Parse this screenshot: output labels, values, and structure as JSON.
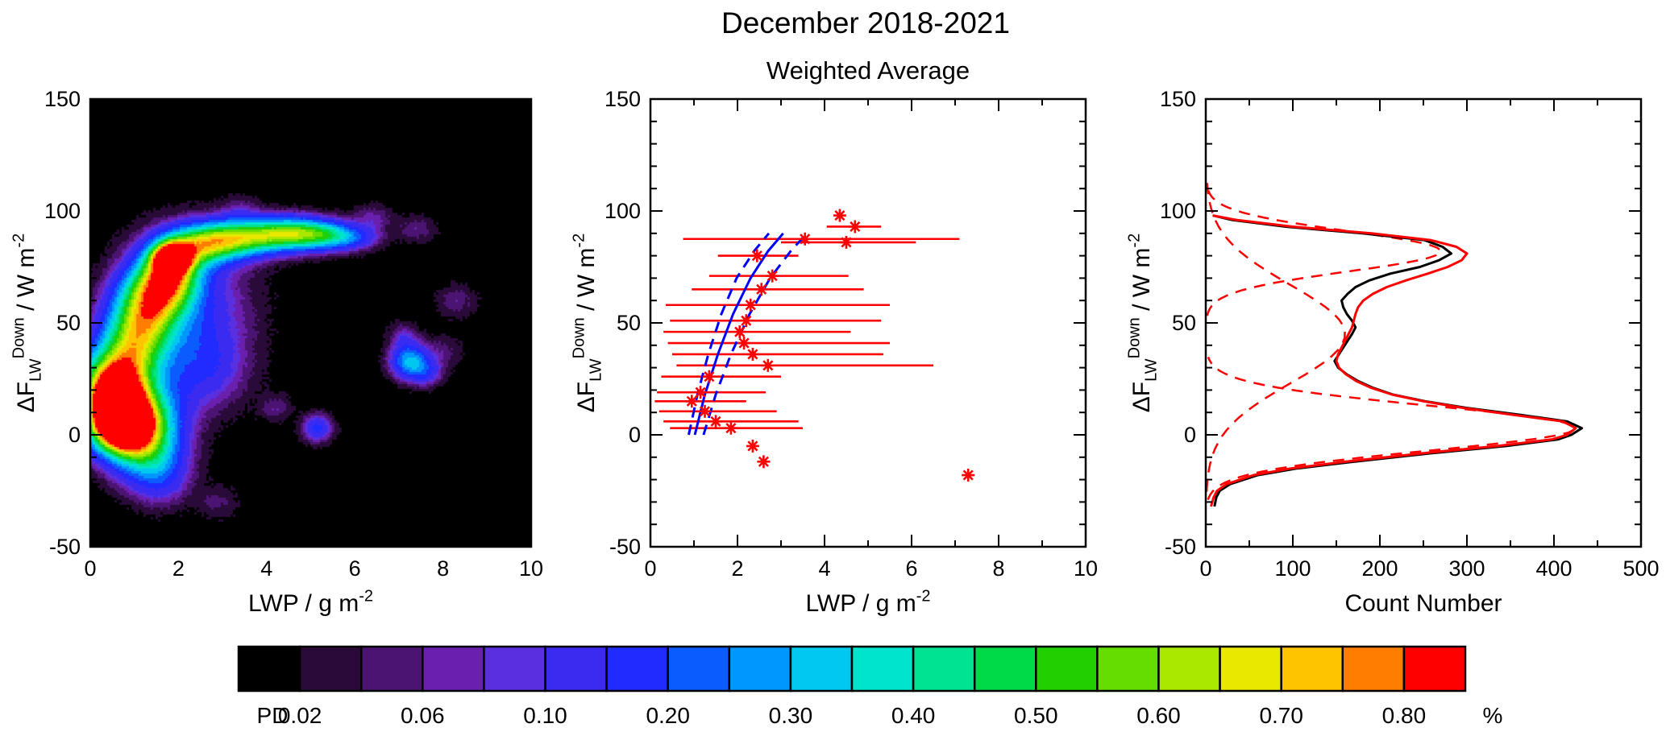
{
  "title": "December 2018-2021",
  "figure_colors": {
    "red": "#ff0000",
    "blue": "#0000ff",
    "black": "#000000"
  },
  "chart_data": [
    {
      "id": "lwp-flux-density",
      "type": "heatmap",
      "xlabel_parts": [
        {
          "t": "LWP / g m",
          "k": "n"
        },
        {
          "t": "-2",
          "k": "sup"
        }
      ],
      "ylabel_parts": [
        {
          "t": "ΔF",
          "k": "n"
        },
        {
          "t": "LW",
          "k": "sub"
        },
        {
          "t": "Down",
          "k": "sup"
        },
        {
          "t": " / W m",
          "k": "n"
        },
        {
          "t": "-2",
          "k": "sup"
        }
      ],
      "xlim": [
        0,
        10
      ],
      "ylim": [
        -50,
        150
      ],
      "x_ticks": {
        "values": [
          0,
          2,
          4,
          6,
          8,
          10
        ],
        "labels": [
          "0",
          "2",
          "4",
          "6",
          "8",
          "10"
        ],
        "minor_step": 1
      },
      "y_ticks": {
        "values": [
          -50,
          0,
          50,
          100,
          150
        ],
        "labels": [
          "-50",
          "0",
          "50",
          "100",
          "150"
        ],
        "minor_step": 10
      },
      "background": "#000000",
      "levels": [
        0.02,
        0.04,
        0.06,
        0.08,
        0.1,
        0.15,
        0.2,
        0.25,
        0.3,
        0.35,
        0.4,
        0.45,
        0.5,
        0.55,
        0.6,
        0.65,
        0.7,
        0.75,
        0.8
      ],
      "level_colors": [
        "#000000",
        "#2a0a38",
        "#4b1473",
        "#6a1fae",
        "#5a2fe0",
        "#3b2bf0",
        "#1f2bff",
        "#0b5cff",
        "#0097ff",
        "#00c8f0",
        "#00e3cc",
        "#00e392",
        "#00d948",
        "#22cf00",
        "#66dd00",
        "#aae800",
        "#e8e800",
        "#ffc400",
        "#ff7d00",
        "#ff0000"
      ],
      "density_blobs": [
        {
          "x": 0.55,
          "y": 13,
          "sx": 0.4,
          "sy": 9,
          "a": 0.9
        },
        {
          "x": 0.75,
          "y": 4,
          "sx": 0.45,
          "sy": 8,
          "a": 0.85
        },
        {
          "x": 0.5,
          "y": 25,
          "sx": 0.5,
          "sy": 9,
          "a": 0.5
        },
        {
          "x": 1.1,
          "y": 8,
          "sx": 0.6,
          "sy": 12,
          "a": 0.5
        },
        {
          "x": 1.3,
          "y": -8,
          "sx": 0.5,
          "sy": 9,
          "a": 0.26
        },
        {
          "x": 1.6,
          "y": -20,
          "sx": 0.45,
          "sy": 8,
          "a": 0.1
        },
        {
          "x": 0.95,
          "y": 38,
          "sx": 0.5,
          "sy": 10,
          "a": 0.42
        },
        {
          "x": 1.2,
          "y": 52,
          "sx": 0.5,
          "sy": 10,
          "a": 0.38
        },
        {
          "x": 1.5,
          "y": 63,
          "sx": 0.5,
          "sy": 9,
          "a": 0.42
        },
        {
          "x": 1.8,
          "y": 72,
          "sx": 0.45,
          "sy": 8,
          "a": 0.5
        },
        {
          "x": 1.85,
          "y": 79,
          "sx": 0.28,
          "sy": 4.5,
          "a": 0.85
        },
        {
          "x": 2.4,
          "y": 84,
          "sx": 0.55,
          "sy": 6,
          "a": 0.42
        },
        {
          "x": 3.1,
          "y": 87,
          "sx": 0.6,
          "sy": 5.5,
          "a": 0.38
        },
        {
          "x": 3.9,
          "y": 89,
          "sx": 0.65,
          "sy": 5,
          "a": 0.36
        },
        {
          "x": 4.7,
          "y": 90,
          "sx": 0.55,
          "sy": 4.5,
          "a": 0.4
        },
        {
          "x": 5.4,
          "y": 89,
          "sx": 0.45,
          "sy": 4,
          "a": 0.26
        },
        {
          "x": 6.0,
          "y": 88,
          "sx": 0.4,
          "sy": 3.5,
          "a": 0.12
        },
        {
          "x": 2.1,
          "y": 55,
          "sx": 0.9,
          "sy": 20,
          "a": 0.16
        },
        {
          "x": 2.6,
          "y": 30,
          "sx": 0.6,
          "sy": 12,
          "a": 0.1
        },
        {
          "x": 7.25,
          "y": 33,
          "sx": 0.28,
          "sy": 5,
          "a": 0.3
        },
        {
          "x": 7.6,
          "y": 28,
          "sx": 0.25,
          "sy": 4,
          "a": 0.12
        },
        {
          "x": 7.1,
          "y": 44,
          "sx": 0.22,
          "sy": 4,
          "a": 0.07
        },
        {
          "x": 5.15,
          "y": 3,
          "sx": 0.22,
          "sy": 4,
          "a": 0.16
        },
        {
          "x": 4.2,
          "y": 12,
          "sx": 0.25,
          "sy": 4,
          "a": 0.05
        },
        {
          "x": 6.4,
          "y": 97,
          "sx": 0.3,
          "sy": 4,
          "a": 0.06
        },
        {
          "x": 7.4,
          "y": 92,
          "sx": 0.3,
          "sy": 4,
          "a": 0.05
        },
        {
          "x": 8.3,
          "y": 60,
          "sx": 0.3,
          "sy": 5,
          "a": 0.05
        },
        {
          "x": 8.0,
          "y": 37,
          "sx": 0.3,
          "sy": 5,
          "a": 0.04
        },
        {
          "x": 2.9,
          "y": -30,
          "sx": 0.3,
          "sy": 5,
          "a": 0.04
        },
        {
          "x": 3.4,
          "y": 100,
          "sx": 0.3,
          "sy": 4,
          "a": 0.05
        }
      ]
    },
    {
      "id": "weighted-average",
      "type": "scatter",
      "title": "Weighted Average",
      "xlabel_parts": [
        {
          "t": "LWP / g m",
          "k": "n"
        },
        {
          "t": "-2",
          "k": "sup"
        }
      ],
      "ylabel_parts": [
        {
          "t": "ΔF",
          "k": "n"
        },
        {
          "t": "LW",
          "k": "sub"
        },
        {
          "t": "Down",
          "k": "sup"
        },
        {
          "t": " / W m",
          "k": "n"
        },
        {
          "t": "-2",
          "k": "sup"
        }
      ],
      "xlim": [
        0,
        10
      ],
      "ylim": [
        -50,
        150
      ],
      "x_ticks": {
        "values": [
          0,
          2,
          4,
          6,
          8,
          10
        ],
        "labels": [
          "0",
          "2",
          "4",
          "6",
          "8",
          "10"
        ],
        "minor_step": 1
      },
      "y_ticks": {
        "values": [
          -50,
          0,
          50,
          100,
          150
        ],
        "labels": [
          "-50",
          "0",
          "50",
          "100",
          "150"
        ],
        "minor_step": 10
      },
      "marker": {
        "shape": "asterisk",
        "color": "#ff0000"
      },
      "points": [
        {
          "x": 4.35,
          "y": 98,
          "xlo": 4.35,
          "xhi": 4.35
        },
        {
          "x": 4.7,
          "y": 93,
          "xlo": 4.05,
          "xhi": 5.3
        },
        {
          "x": 4.5,
          "y": 86,
          "xlo": 3.0,
          "xhi": 6.1
        },
        {
          "x": 3.55,
          "y": 87.5,
          "xlo": 0.75,
          "xhi": 7.1
        },
        {
          "x": 2.45,
          "y": 80,
          "xlo": 1.55,
          "xhi": 3.4
        },
        {
          "x": 2.8,
          "y": 71,
          "xlo": 1.35,
          "xhi": 4.55
        },
        {
          "x": 2.55,
          "y": 65,
          "xlo": 0.95,
          "xhi": 4.9
        },
        {
          "x": 2.3,
          "y": 58,
          "xlo": 0.35,
          "xhi": 5.5
        },
        {
          "x": 2.2,
          "y": 51,
          "xlo": 0.45,
          "xhi": 5.3
        },
        {
          "x": 2.05,
          "y": 46,
          "xlo": 0.3,
          "xhi": 4.6
        },
        {
          "x": 2.15,
          "y": 41,
          "xlo": 0.4,
          "xhi": 5.5
        },
        {
          "x": 2.35,
          "y": 36,
          "xlo": 0.5,
          "xhi": 5.35
        },
        {
          "x": 2.7,
          "y": 31,
          "xlo": 0.6,
          "xhi": 6.5
        },
        {
          "x": 1.35,
          "y": 26,
          "xlo": 0.25,
          "xhi": 3.0
        },
        {
          "x": 1.15,
          "y": 19,
          "xlo": 0.15,
          "xhi": 2.65
        },
        {
          "x": 0.95,
          "y": 15,
          "xlo": 0.1,
          "xhi": 2.2
        },
        {
          "x": 1.25,
          "y": 10.5,
          "xlo": 0.2,
          "xhi": 2.9
        },
        {
          "x": 1.5,
          "y": 6,
          "xlo": 0.3,
          "xhi": 3.4
        },
        {
          "x": 1.85,
          "y": 3,
          "xlo": 0.45,
          "xhi": 3.5
        },
        {
          "x": 2.35,
          "y": -5,
          "xlo": 2.35,
          "xhi": 2.35
        },
        {
          "x": 2.6,
          "y": -12,
          "xlo": 2.6,
          "xhi": 2.6
        },
        {
          "x": 7.3,
          "y": -18,
          "xlo": 7.3,
          "xhi": 7.3
        }
      ],
      "fit_curves": [
        {
          "name": "fit-solid",
          "style": "solid",
          "color": "#0000ff",
          "x": [
            1.02,
            1.25,
            1.55,
            1.9,
            2.3,
            2.7,
            3.05
          ],
          "y": [
            0,
            18,
            36,
            54,
            70,
            82,
            90
          ]
        },
        {
          "name": "fit-lower-bound",
          "style": "dashed",
          "color": "#0000ff",
          "x": [
            0.88,
            1.08,
            1.33,
            1.63,
            1.98,
            2.38,
            2.72
          ],
          "y": [
            0,
            18,
            36,
            54,
            70,
            82,
            90
          ]
        },
        {
          "name": "fit-upper-bound",
          "style": "dashed",
          "color": "#0000ff",
          "x": [
            1.22,
            1.5,
            1.85,
            2.28,
            2.75,
            3.22,
            3.5
          ],
          "y": [
            0,
            18,
            36,
            54,
            70,
            82,
            88
          ]
        }
      ]
    },
    {
      "id": "count-histogram",
      "type": "line",
      "xlabel_parts": [
        {
          "t": "Count Number",
          "k": "n"
        }
      ],
      "ylabel_parts": [
        {
          "t": "ΔF",
          "k": "n"
        },
        {
          "t": "LW",
          "k": "sub"
        },
        {
          "t": "Down",
          "k": "sup"
        },
        {
          "t": " / W m",
          "k": "n"
        },
        {
          "t": "-2",
          "k": "sup"
        }
      ],
      "xlim": [
        0,
        500
      ],
      "ylim": [
        -50,
        150
      ],
      "x_ticks": {
        "values": [
          0,
          100,
          200,
          300,
          400,
          500
        ],
        "labels": [
          "0",
          "100",
          "200",
          "300",
          "400",
          "500"
        ],
        "minor_step": 50
      },
      "y_ticks": {
        "values": [
          -50,
          0,
          50,
          100,
          150
        ],
        "labels": [
          "-50",
          "0",
          "50",
          "100",
          "150"
        ],
        "minor_step": 10
      },
      "series": [
        {
          "name": "observed-counts",
          "color": "#000000",
          "style": "solid",
          "points": [
            [
              10,
              -32
            ],
            [
              12,
              -28
            ],
            [
              16,
              -25
            ],
            [
              28,
              -22
            ],
            [
              60,
              -18
            ],
            [
              105,
              -15
            ],
            [
              170,
              -12
            ],
            [
              265,
              -8
            ],
            [
              345,
              -5
            ],
            [
              405,
              -2
            ],
            [
              420,
              0
            ],
            [
              432,
              3
            ],
            [
              415,
              6
            ],
            [
              360,
              9
            ],
            [
              300,
              12
            ],
            [
              252,
              15
            ],
            [
              215,
              18
            ],
            [
              192,
              21
            ],
            [
              175,
              24
            ],
            [
              162,
              27
            ],
            [
              152,
              30
            ],
            [
              148,
              33
            ],
            [
              153,
              36
            ],
            [
              158,
              39
            ],
            [
              163,
              42
            ],
            [
              168,
              45
            ],
            [
              172,
              48
            ],
            [
              168,
              51
            ],
            [
              162,
              54
            ],
            [
              158,
              57
            ],
            [
              156,
              60
            ],
            [
              163,
              63
            ],
            [
              172,
              66
            ],
            [
              188,
              69
            ],
            [
              212,
              72
            ],
            [
              246,
              75
            ],
            [
              268,
              78
            ],
            [
              282,
              81
            ],
            [
              272,
              84
            ],
            [
              251,
              87
            ],
            [
              180,
              90
            ],
            [
              92,
              93
            ],
            [
              30,
              96
            ],
            [
              8,
              98
            ]
          ]
        },
        {
          "name": "gaussian-fit-total",
          "color": "#ff0000",
          "style": "solid",
          "points": [
            [
              6,
              -32
            ],
            [
              9,
              -28
            ],
            [
              13,
              -25
            ],
            [
              24,
              -22
            ],
            [
              55,
              -18
            ],
            [
              98,
              -15
            ],
            [
              160,
              -12
            ],
            [
              255,
              -8
            ],
            [
              335,
              -5
            ],
            [
              398,
              -2
            ],
            [
              415,
              0
            ],
            [
              425,
              3
            ],
            [
              410,
              6
            ],
            [
              352,
              9
            ],
            [
              296,
              12
            ],
            [
              250,
              15
            ],
            [
              214,
              18
            ],
            [
              190,
              21
            ],
            [
              173,
              24
            ],
            [
              161,
              27
            ],
            [
              153,
              30
            ],
            [
              150,
              33
            ],
            [
              152,
              36
            ],
            [
              156,
              39
            ],
            [
              160,
              42
            ],
            [
              164,
              45
            ],
            [
              168,
              48
            ],
            [
              170,
              51
            ],
            [
              172,
              54
            ],
            [
              175,
              57
            ],
            [
              181,
              60
            ],
            [
              192,
              63
            ],
            [
              208,
              66
            ],
            [
              230,
              69
            ],
            [
              255,
              72
            ],
            [
              278,
              75
            ],
            [
              294,
              78
            ],
            [
              300,
              81
            ],
            [
              288,
              84
            ],
            [
              258,
              87
            ],
            [
              190,
              90
            ],
            [
              100,
              93
            ],
            [
              35,
              96
            ],
            [
              8,
              98
            ]
          ]
        }
      ],
      "gaussian_components": [
        {
          "center": 3,
          "amplitude": 425,
          "sigma": 10
        },
        {
          "center": 45,
          "amplitude": 160,
          "sigma": 22
        },
        {
          "center": 82,
          "amplitude": 270,
          "sigma": 9
        }
      ],
      "component_style": {
        "color": "#ff0000",
        "style": "dashed"
      }
    }
  ],
  "colorbar": {
    "label_left": "PD",
    "unit_label": "%",
    "tick_labels": [
      "0.02",
      "0.06",
      "0.10",
      "0.20",
      "0.30",
      "0.40",
      "0.50",
      "0.60",
      "0.70",
      "0.80"
    ]
  }
}
